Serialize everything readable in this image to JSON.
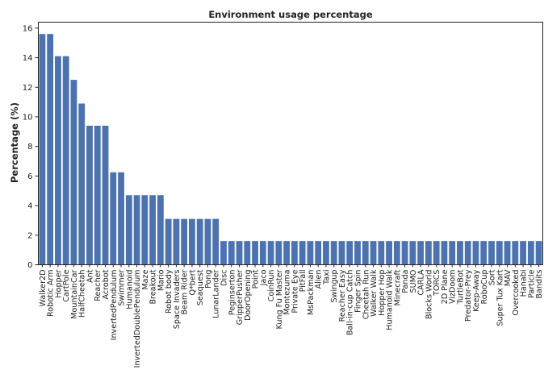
{
  "chart_data": {
    "type": "bar",
    "title": "Environment usage percentage",
    "xlabel": "",
    "ylabel": "Percentage (%)",
    "ylim": [
      0,
      16.4
    ],
    "yticks": [
      "0",
      "2",
      "4",
      "6",
      "8",
      "10",
      "12",
      "14",
      "16"
    ],
    "grid": false,
    "bar_color": "#4c72b0",
    "categories": [
      "Walker2D",
      "Robotic Arm",
      "Hopper",
      "CartPole",
      "MountainCar",
      "HalfCheetah",
      "Ant",
      "Reacher",
      "Acrobot",
      "InvertedPendulum",
      "Swimmer",
      "Humanoid",
      "InvertedDoublePendulum",
      "Maze",
      "Breakout",
      "Mario",
      "Robot body",
      "Space Invaders",
      "Beam Rider",
      "Q*bert",
      "Seaquest",
      "Pong",
      "LunarLander",
      "Disc",
      "Peginserton",
      "GripperPusher",
      "DoorOpening",
      "Point",
      "Jaco",
      "CoinRun",
      "Kung Fu Master",
      "Montezuma",
      "Private Eye",
      "PitFall",
      "MsPackman",
      "Alien",
      "Taxi",
      "Swingup",
      "Reacher Easy",
      "Ball-in-cup Catch",
      "Finger Spin",
      "Cheetah Run",
      "Walker Walk",
      "Hopper Hop",
      "Humanoid Walk",
      "Minecraft",
      "Panda",
      "SUMO",
      "CARLA",
      "Blocks World",
      "TORCS",
      "2D Plane",
      "VizDoom",
      "TurtleBot",
      "Predator-Prey",
      "Keep-Away",
      "RoboCup",
      "Sort",
      "Super Tux Kart",
      "MAV",
      "Overcooked",
      "Hanabi",
      "Particle",
      "Bandits"
    ],
    "values": [
      15.6,
      15.6,
      14.1,
      14.1,
      12.5,
      10.9,
      9.4,
      9.4,
      9.4,
      6.25,
      6.25,
      4.7,
      4.7,
      4.7,
      4.7,
      4.7,
      3.1,
      3.1,
      3.1,
      3.1,
      3.1,
      3.1,
      3.1,
      1.6,
      1.6,
      1.6,
      1.6,
      1.6,
      1.6,
      1.6,
      1.6,
      1.6,
      1.6,
      1.6,
      1.6,
      1.6,
      1.6,
      1.6,
      1.6,
      1.6,
      1.6,
      1.6,
      1.6,
      1.6,
      1.6,
      1.6,
      1.6,
      1.6,
      1.6,
      1.6,
      1.6,
      1.6,
      1.6,
      1.6,
      1.6,
      1.6,
      1.6,
      1.6,
      1.6,
      1.6,
      1.6,
      1.6,
      1.6,
      1.6
    ]
  }
}
